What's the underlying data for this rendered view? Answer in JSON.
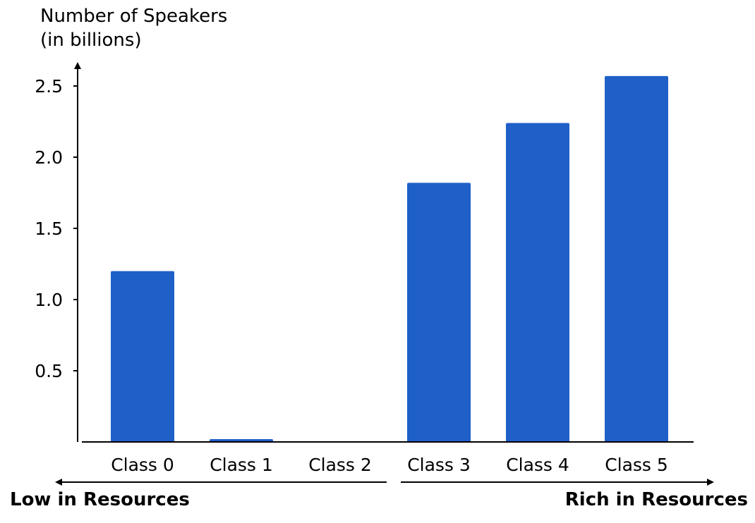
{
  "chart_data": {
    "type": "bar",
    "ylabel": "Number of Speakers\n(in billions)",
    "xlabel": "",
    "categories": [
      "Class 0",
      "Class 1",
      "Class 2",
      "Class 3",
      "Class 4",
      "Class 5"
    ],
    "values": [
      1.2,
      0.02,
      0.0,
      1.82,
      2.24,
      2.57
    ],
    "yticks": [
      "0.5",
      "1.0",
      "1.5",
      "2.0",
      "2.5"
    ],
    "ylim": [
      0,
      2.7
    ],
    "grid": false,
    "bar_color": "#1f5fc8",
    "annotations": {
      "left": "Low in Resources",
      "right": "Rich in Resources"
    }
  }
}
